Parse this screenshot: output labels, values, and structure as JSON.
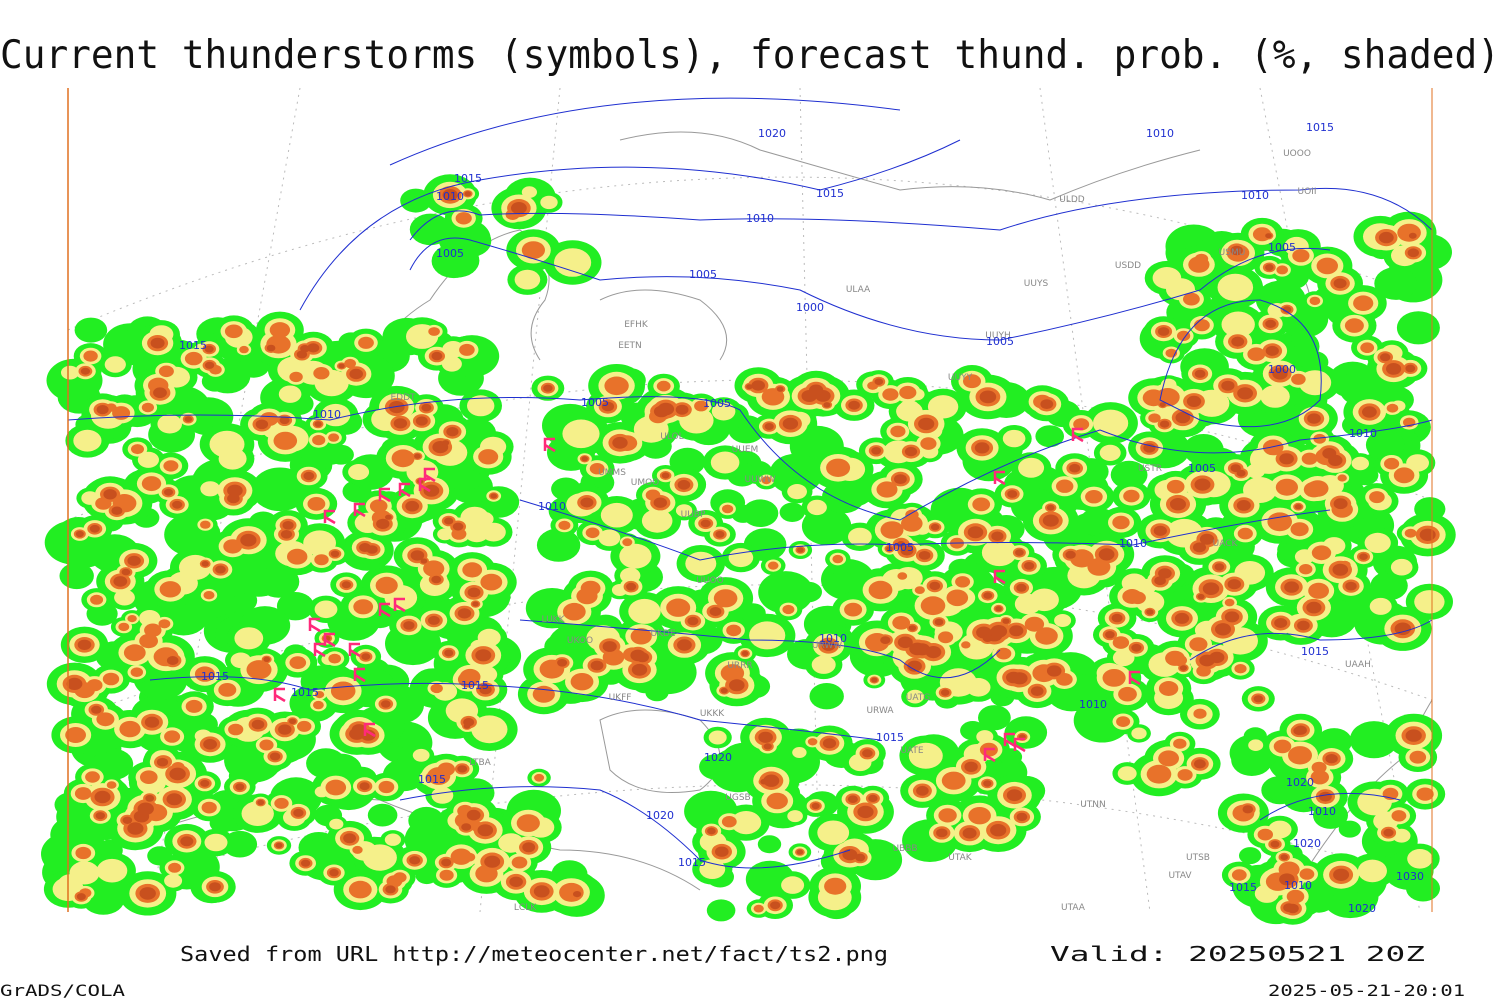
{
  "header": {
    "title": "Current thunderstorms (symbols), forecast thund. prob. (%, shaded)"
  },
  "isobar_labels": [
    "1020",
    "1015",
    "1010",
    "1005",
    "1015",
    "1010",
    "1005",
    "1000",
    "1010",
    "1015",
    "1010",
    "1005",
    "1005",
    "1000",
    "1010",
    "1005",
    "1015",
    "1010",
    "1005",
    "1005",
    "1010",
    "1005",
    "1010",
    "1010",
    "1015",
    "1015",
    "1015",
    "1015",
    "1020",
    "1015",
    "1020",
    "1015",
    "1015",
    "1010",
    "1020",
    "1010",
    "1020",
    "1010",
    "1015",
    "1030",
    "1020"
  ],
  "station_labels": [
    "EFHK",
    "EETN",
    "ULOL",
    "UUEM",
    "UUWW",
    "UUBP",
    "ULAA",
    "UUYS",
    "USDD",
    "USMU",
    "ULDD",
    "UOOO",
    "UOII",
    "USTR",
    "UATG",
    "URWA",
    "UATE",
    "UTNN",
    "UTAK",
    "UTAA",
    "UTSB",
    "UTAV",
    "UAAH",
    "UBBB",
    "UGSB",
    "LTBA",
    "LCLK",
    "UKFF",
    "UKKK",
    "UKOO",
    "LUKK",
    "UUOO",
    "URRR",
    "UKDE",
    "EDDT",
    "UMMS",
    "UMOO",
    "UUYY",
    "UUYH",
    "URWW",
    "UACK"
  ],
  "footer": {
    "source": "Saved from URL http://meteocenter.net/fact/ts2.png",
    "valid": "Valid: 20250521 20Z",
    "software": "GrADS/COLA",
    "timestamp": "2025-05-21-20:01"
  }
}
